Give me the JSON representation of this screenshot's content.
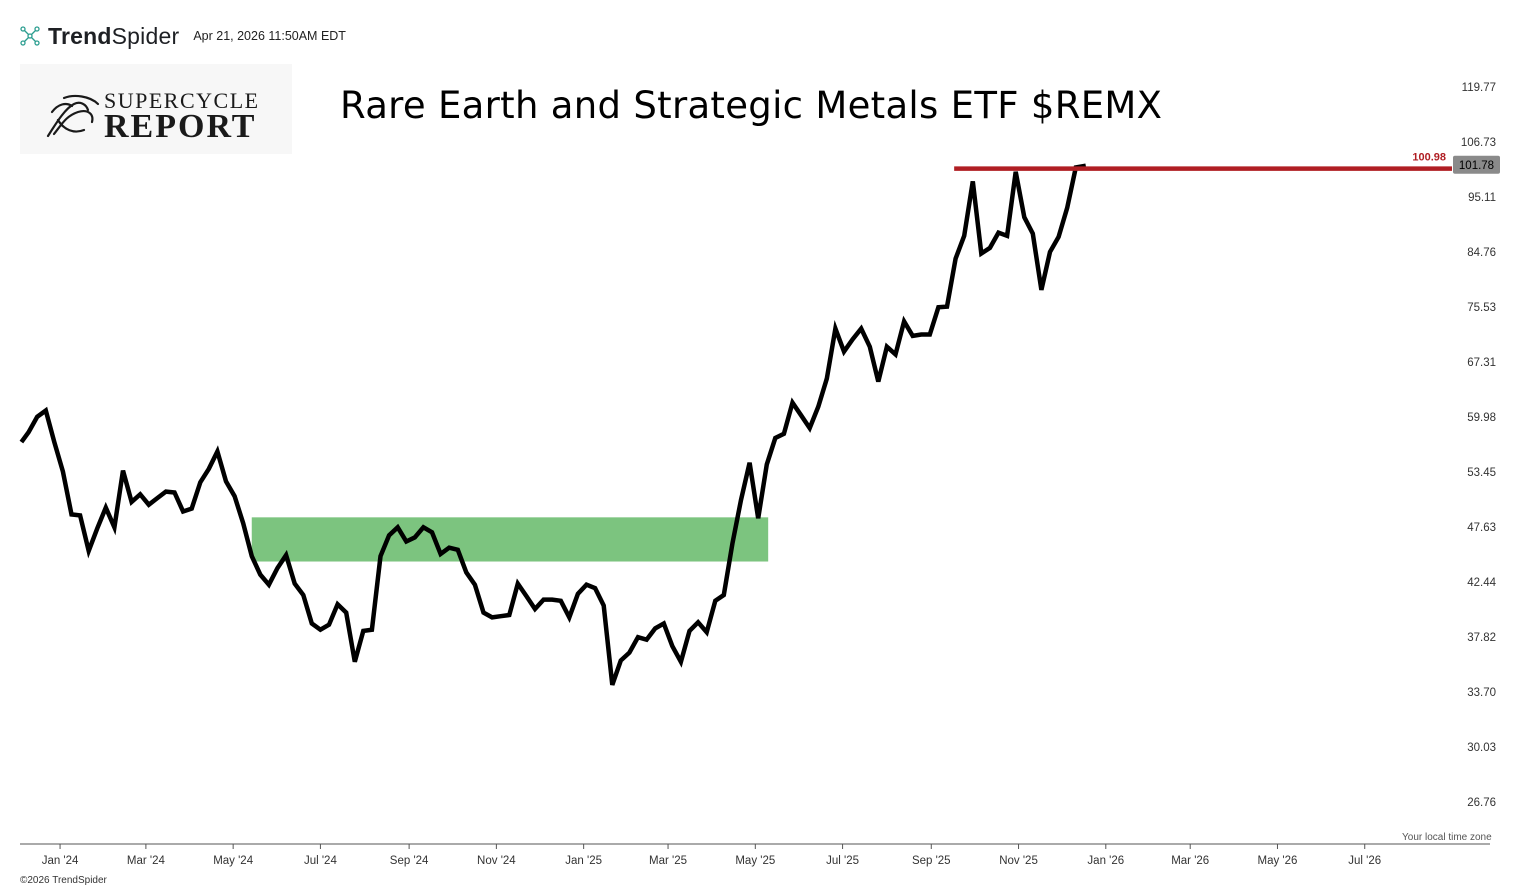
{
  "header": {
    "brand_trend": "Trend",
    "brand_spider": "Spider",
    "timestamp": "Apr 21, 2026 11:50AM EDT"
  },
  "logo": {
    "line1": "SUPERCYCLE",
    "line2": "REPORT"
  },
  "footer": {
    "copyright": "©2026 TrendSpider",
    "timezone_note": "Your local time zone"
  },
  "colors": {
    "price_line": "#000000",
    "resistance_line": "#b01e23",
    "support_zone": "#7cc47f",
    "current_price_badge": "#8a8a8a"
  },
  "chart_data": {
    "type": "line",
    "title": "Rare Earth and Strategic Metals ETF $REMX",
    "scale": "log",
    "ylim": [
      24.5,
      126
    ],
    "y_ticks": [
      "119.77",
      "106.73",
      "95.11",
      "84.76",
      "75.53",
      "67.31",
      "59.98",
      "53.45",
      "47.63",
      "42.44",
      "37.82",
      "33.70",
      "30.03",
      "26.76"
    ],
    "x_range": [
      "2023-12-04",
      "2026-08-31"
    ],
    "x_ticks": [
      {
        "label": "Jan '24",
        "date": "2024-01-01"
      },
      {
        "label": "Mar '24",
        "date": "2024-03-01"
      },
      {
        "label": "May '24",
        "date": "2024-05-01"
      },
      {
        "label": "Jul '24",
        "date": "2024-07-01"
      },
      {
        "label": "Sep '24",
        "date": "2024-09-01"
      },
      {
        "label": "Nov '24",
        "date": "2024-11-01"
      },
      {
        "label": "Jan '25",
        "date": "2025-01-01"
      },
      {
        "label": "Mar '25",
        "date": "2025-03-01"
      },
      {
        "label": "May '25",
        "date": "2025-05-01"
      },
      {
        "label": "Jul '25",
        "date": "2025-07-01"
      },
      {
        "label": "Sep '25",
        "date": "2025-09-01"
      },
      {
        "label": "Nov '25",
        "date": "2025-11-01"
      },
      {
        "label": "Jan '26",
        "date": "2026-01-01"
      },
      {
        "label": "Mar '26",
        "date": "2026-03-01"
      },
      {
        "label": "May '26",
        "date": "2026-05-01"
      },
      {
        "label": "Jul '26",
        "date": "2026-07-01"
      }
    ],
    "series": [
      {
        "values": [
          [
            "2023-12-05",
            56.9
          ],
          [
            "2023-12-10",
            58.1
          ],
          [
            "2023-12-16",
            60.0
          ],
          [
            "2023-12-22",
            60.8
          ],
          [
            "2023-12-28",
            56.9
          ],
          [
            "2024-01-03",
            53.5
          ],
          [
            "2024-01-09",
            48.9
          ],
          [
            "2024-01-15",
            48.8
          ],
          [
            "2024-01-21",
            45.3
          ],
          [
            "2024-01-27",
            47.5
          ],
          [
            "2024-02-02",
            49.6
          ],
          [
            "2024-02-08",
            47.6
          ],
          [
            "2024-02-14",
            53.6
          ],
          [
            "2024-02-20",
            50.2
          ],
          [
            "2024-02-26",
            51.0
          ],
          [
            "2024-03-03",
            49.9
          ],
          [
            "2024-03-09",
            50.6
          ],
          [
            "2024-03-15",
            51.3
          ],
          [
            "2024-03-21",
            51.2
          ],
          [
            "2024-03-27",
            49.2
          ],
          [
            "2024-04-02",
            49.5
          ],
          [
            "2024-04-08",
            52.3
          ],
          [
            "2024-04-14",
            53.8
          ],
          [
            "2024-04-20",
            55.8
          ],
          [
            "2024-04-26",
            52.4
          ],
          [
            "2024-05-02",
            50.8
          ],
          [
            "2024-05-08",
            48.0
          ],
          [
            "2024-05-14",
            44.8
          ],
          [
            "2024-05-20",
            43.1
          ],
          [
            "2024-05-26",
            42.2
          ],
          [
            "2024-06-01",
            43.7
          ],
          [
            "2024-06-07",
            44.9
          ],
          [
            "2024-06-13",
            42.3
          ],
          [
            "2024-06-19",
            41.3
          ],
          [
            "2024-06-25",
            38.9
          ],
          [
            "2024-07-01",
            38.4
          ],
          [
            "2024-07-07",
            38.8
          ],
          [
            "2024-07-13",
            40.5
          ],
          [
            "2024-07-19",
            39.8
          ],
          [
            "2024-07-25",
            35.9
          ],
          [
            "2024-07-31",
            38.3
          ],
          [
            "2024-08-06",
            38.4
          ],
          [
            "2024-08-12",
            44.8
          ],
          [
            "2024-08-18",
            46.8
          ],
          [
            "2024-08-24",
            47.6
          ],
          [
            "2024-08-30",
            46.2
          ],
          [
            "2024-09-05",
            46.6
          ],
          [
            "2024-09-11",
            47.6
          ],
          [
            "2024-09-17",
            47.1
          ],
          [
            "2024-09-23",
            45.0
          ],
          [
            "2024-09-29",
            45.6
          ],
          [
            "2024-10-05",
            45.4
          ],
          [
            "2024-10-11",
            43.3
          ],
          [
            "2024-10-17",
            42.2
          ],
          [
            "2024-10-23",
            39.8
          ],
          [
            "2024-10-29",
            39.4
          ],
          [
            "2024-11-04",
            39.5
          ],
          [
            "2024-11-10",
            39.6
          ],
          [
            "2024-11-16",
            42.3
          ],
          [
            "2024-11-22",
            41.2
          ],
          [
            "2024-11-28",
            40.1
          ],
          [
            "2024-12-04",
            40.9
          ],
          [
            "2024-12-10",
            40.9
          ],
          [
            "2024-12-16",
            40.8
          ],
          [
            "2024-12-22",
            39.4
          ],
          [
            "2024-12-28",
            41.4
          ],
          [
            "2025-01-03",
            42.2
          ],
          [
            "2025-01-09",
            41.9
          ],
          [
            "2025-01-15",
            40.4
          ],
          [
            "2025-01-21",
            34.2
          ],
          [
            "2025-01-27",
            36.0
          ],
          [
            "2025-02-02",
            36.6
          ],
          [
            "2025-02-08",
            37.8
          ],
          [
            "2025-02-14",
            37.6
          ],
          [
            "2025-02-20",
            38.5
          ],
          [
            "2025-02-26",
            38.9
          ],
          [
            "2025-03-04",
            37.1
          ],
          [
            "2025-03-10",
            35.9
          ],
          [
            "2025-03-16",
            38.3
          ],
          [
            "2025-03-22",
            39.0
          ],
          [
            "2025-03-28",
            38.2
          ],
          [
            "2025-04-03",
            40.8
          ],
          [
            "2025-04-09",
            41.3
          ],
          [
            "2025-04-15",
            46.0
          ],
          [
            "2025-04-21",
            50.4
          ],
          [
            "2025-04-27",
            54.5
          ],
          [
            "2025-05-03",
            48.5
          ],
          [
            "2025-05-09",
            54.3
          ],
          [
            "2025-05-15",
            57.4
          ],
          [
            "2025-05-21",
            57.9
          ],
          [
            "2025-05-27",
            61.8
          ],
          [
            "2025-06-02",
            60.2
          ],
          [
            "2025-06-08",
            58.6
          ],
          [
            "2025-06-14",
            61.3
          ],
          [
            "2025-06-20",
            65.0
          ],
          [
            "2025-06-26",
            72.2
          ],
          [
            "2025-07-02",
            68.8
          ],
          [
            "2025-07-08",
            70.6
          ],
          [
            "2025-07-14",
            72.2
          ],
          [
            "2025-07-20",
            69.5
          ],
          [
            "2025-07-26",
            64.6
          ],
          [
            "2025-08-01",
            69.5
          ],
          [
            "2025-08-07",
            68.4
          ],
          [
            "2025-08-13",
            73.3
          ],
          [
            "2025-08-19",
            71.1
          ],
          [
            "2025-08-25",
            71.3
          ],
          [
            "2025-08-31",
            71.3
          ],
          [
            "2025-09-06",
            75.5
          ],
          [
            "2025-09-12",
            75.6
          ],
          [
            "2025-09-18",
            83.6
          ],
          [
            "2025-09-24",
            87.7
          ],
          [
            "2025-09-30",
            98.3
          ],
          [
            "2025-10-06",
            84.5
          ],
          [
            "2025-10-12",
            85.5
          ],
          [
            "2025-10-18",
            88.3
          ],
          [
            "2025-10-24",
            87.7
          ],
          [
            "2025-10-30",
            100.3
          ],
          [
            "2025-11-05",
            91.2
          ],
          [
            "2025-11-11",
            88.1
          ],
          [
            "2025-11-17",
            78.3
          ],
          [
            "2025-11-23",
            84.8
          ],
          [
            "2025-11-29",
            87.5
          ],
          [
            "2025-12-05",
            93.0
          ],
          [
            "2025-12-11",
            101.2
          ],
          [
            "2025-12-18",
            101.6
          ]
        ]
      }
    ],
    "resistance": {
      "value": 100.98,
      "label": "100.98",
      "from": "2025-09-17",
      "to": "2026-08-31"
    },
    "support_zone": {
      "from": "2024-05-14",
      "to": "2025-05-10",
      "low": 44.3,
      "high": 48.6
    },
    "last_price": {
      "value": 101.78,
      "label": "101.78"
    }
  }
}
